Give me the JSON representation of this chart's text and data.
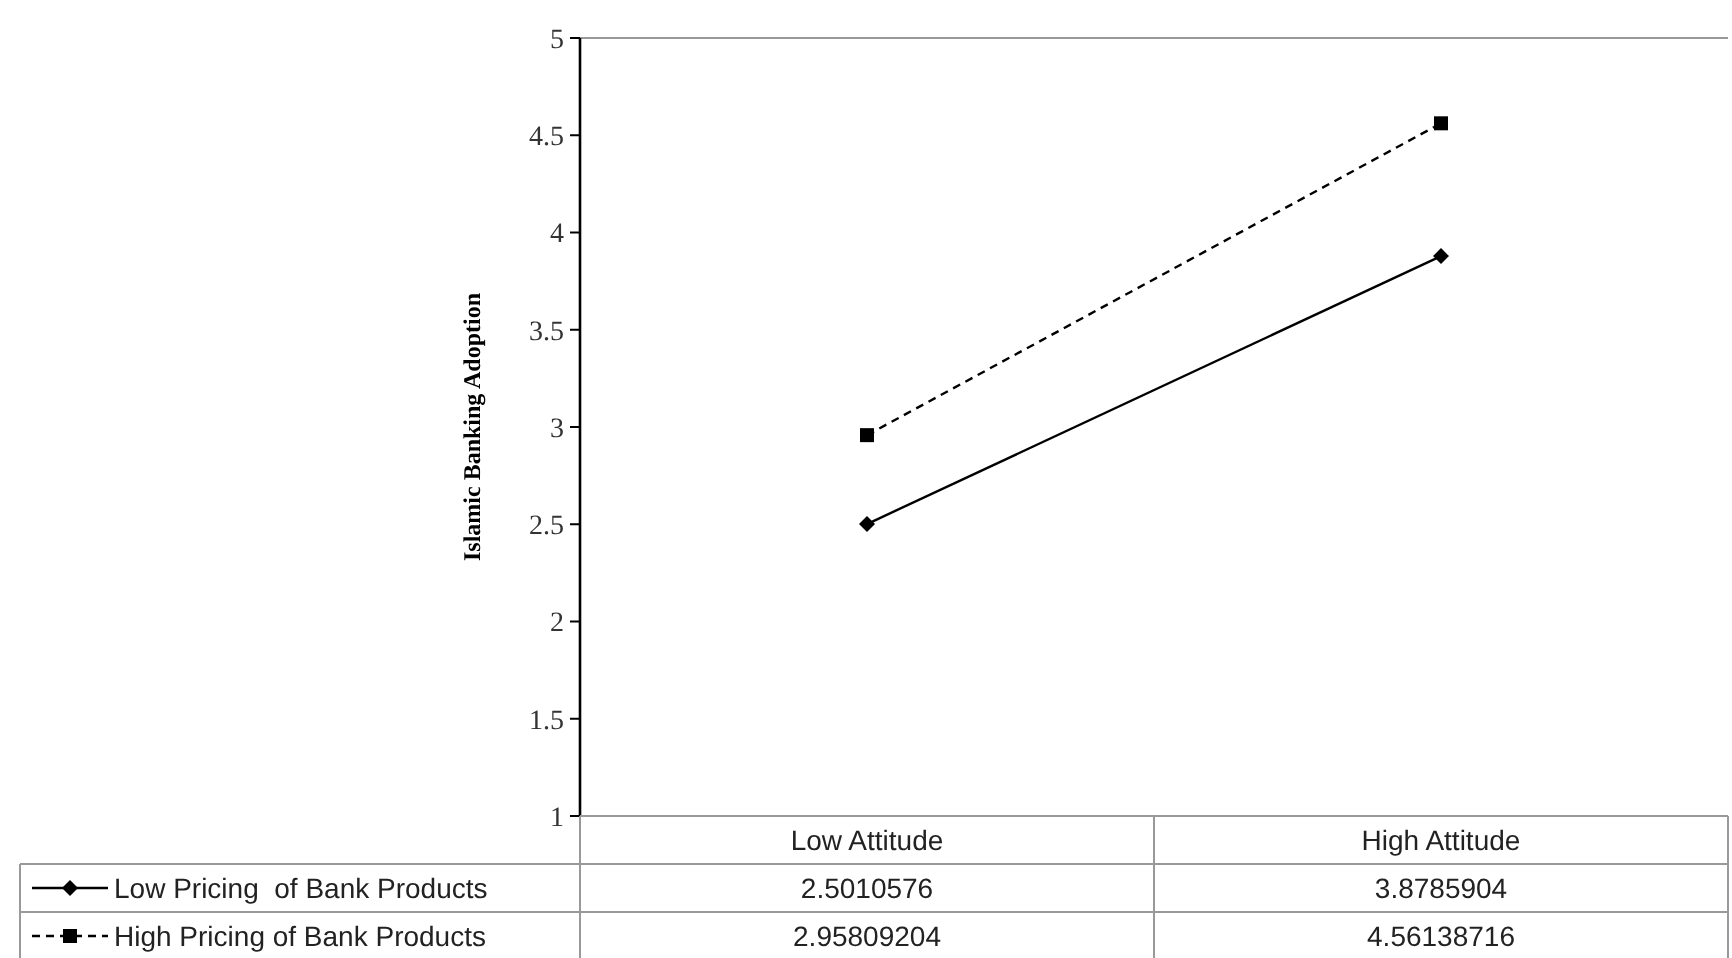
{
  "chart_data": {
    "type": "line",
    "ylabel": "Islamic Banking Adoption",
    "categories": [
      "Low Attitude",
      "High Attitude"
    ],
    "series": [
      {
        "name": "Low Pricing  of Bank Products",
        "color": "#000000",
        "values": [
          2.5010576,
          3.8785904
        ],
        "marker": "diamond",
        "line_style": "solid"
      },
      {
        "name": "High Pricing of Bank Products",
        "color": "#000000",
        "values": [
          2.95809204,
          4.56138716
        ],
        "marker": "square",
        "line_style": "dashed"
      }
    ],
    "ylim": [
      1,
      5
    ],
    "yticks": [
      1,
      1.5,
      2,
      2.5,
      3,
      3.5,
      4,
      4.5,
      5
    ],
    "data_labels": true,
    "grid": false,
    "legend": "bottom"
  }
}
